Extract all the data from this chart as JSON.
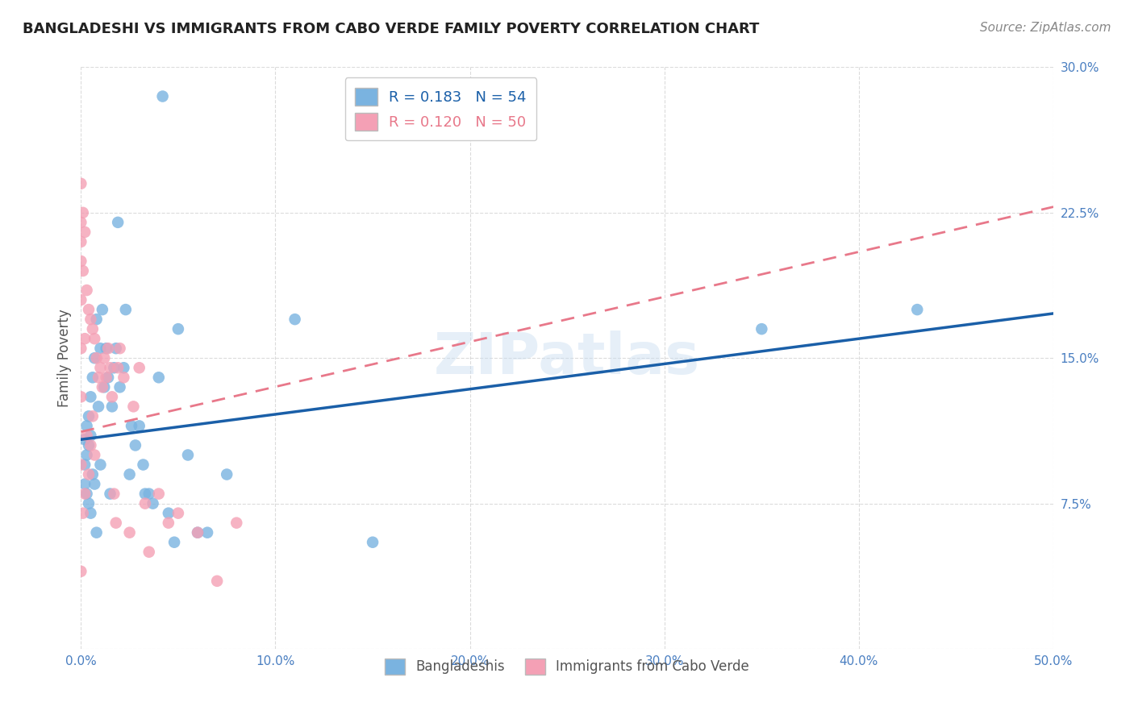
{
  "title": "BANGLADESHI VS IMMIGRANTS FROM CABO VERDE FAMILY POVERTY CORRELATION CHART",
  "source": "Source: ZipAtlas.com",
  "ylabel": "Family Poverty",
  "title_fontsize": 13,
  "source_fontsize": 11,
  "background_color": "#ffffff",
  "grid_color": "#cccccc",
  "watermark": "ZIPatlas",
  "blue_scatter_x": [
    0.002,
    0.002,
    0.002,
    0.003,
    0.003,
    0.003,
    0.004,
    0.004,
    0.004,
    0.005,
    0.005,
    0.005,
    0.006,
    0.006,
    0.007,
    0.007,
    0.008,
    0.008,
    0.009,
    0.01,
    0.01,
    0.011,
    0.012,
    0.013,
    0.014,
    0.015,
    0.016,
    0.017,
    0.018,
    0.019,
    0.02,
    0.022,
    0.023,
    0.025,
    0.026,
    0.028,
    0.03,
    0.032,
    0.033,
    0.035,
    0.037,
    0.04,
    0.042,
    0.045,
    0.048,
    0.05,
    0.055,
    0.06,
    0.065,
    0.075,
    0.11,
    0.15,
    0.35,
    0.43
  ],
  "blue_scatter_y": [
    0.108,
    0.095,
    0.085,
    0.115,
    0.1,
    0.08,
    0.12,
    0.105,
    0.075,
    0.13,
    0.11,
    0.07,
    0.14,
    0.09,
    0.15,
    0.085,
    0.17,
    0.06,
    0.125,
    0.155,
    0.095,
    0.175,
    0.135,
    0.155,
    0.14,
    0.08,
    0.125,
    0.145,
    0.155,
    0.22,
    0.135,
    0.145,
    0.175,
    0.09,
    0.115,
    0.105,
    0.115,
    0.095,
    0.08,
    0.08,
    0.075,
    0.14,
    0.285,
    0.07,
    0.055,
    0.165,
    0.1,
    0.06,
    0.06,
    0.09,
    0.17,
    0.055,
    0.165,
    0.175
  ],
  "pink_scatter_x": [
    0.0,
    0.0,
    0.0,
    0.0,
    0.0,
    0.0,
    0.0,
    0.0,
    0.0,
    0.001,
    0.001,
    0.001,
    0.002,
    0.002,
    0.002,
    0.003,
    0.003,
    0.004,
    0.004,
    0.005,
    0.005,
    0.006,
    0.006,
    0.007,
    0.007,
    0.008,
    0.009,
    0.01,
    0.011,
    0.012,
    0.013,
    0.014,
    0.015,
    0.016,
    0.017,
    0.018,
    0.019,
    0.02,
    0.022,
    0.025,
    0.027,
    0.03,
    0.033,
    0.035,
    0.04,
    0.045,
    0.05,
    0.06,
    0.07,
    0.08
  ],
  "pink_scatter_y": [
    0.24,
    0.22,
    0.21,
    0.2,
    0.18,
    0.155,
    0.13,
    0.095,
    0.04,
    0.225,
    0.195,
    0.07,
    0.215,
    0.16,
    0.08,
    0.185,
    0.11,
    0.175,
    0.09,
    0.17,
    0.105,
    0.165,
    0.12,
    0.16,
    0.1,
    0.15,
    0.14,
    0.145,
    0.135,
    0.15,
    0.14,
    0.155,
    0.145,
    0.13,
    0.08,
    0.065,
    0.145,
    0.155,
    0.14,
    0.06,
    0.125,
    0.145,
    0.075,
    0.05,
    0.08,
    0.065,
    0.07,
    0.06,
    0.035,
    0.065
  ],
  "blue_color": "#7ab3e0",
  "pink_color": "#f4a0b5",
  "blue_line_color": "#1a5fa8",
  "pink_line_color": "#e8788a",
  "R_blue": 0.183,
  "N_blue": 54,
  "R_pink": 0.12,
  "N_pink": 50,
  "blue_line_start_y": 0.108,
  "blue_line_end_y": 0.173,
  "pink_line_start_y": 0.112,
  "pink_line_end_y": 0.228,
  "xlim": [
    0.0,
    0.5
  ],
  "ylim": [
    0.0,
    0.3
  ],
  "xticks": [
    0.0,
    0.1,
    0.2,
    0.3,
    0.4,
    0.5
  ],
  "yticks": [
    0.0,
    0.075,
    0.15,
    0.225,
    0.3
  ],
  "ytick_labels": [
    "",
    "7.5%",
    "15.0%",
    "22.5%",
    "30.0%"
  ],
  "xtick_labels": [
    "0.0%",
    "10.0%",
    "20.0%",
    "30.0%",
    "40.0%",
    "50.0%"
  ],
  "legend_blue_label": "Bangladeshis",
  "legend_pink_label": "Immigrants from Cabo Verde"
}
